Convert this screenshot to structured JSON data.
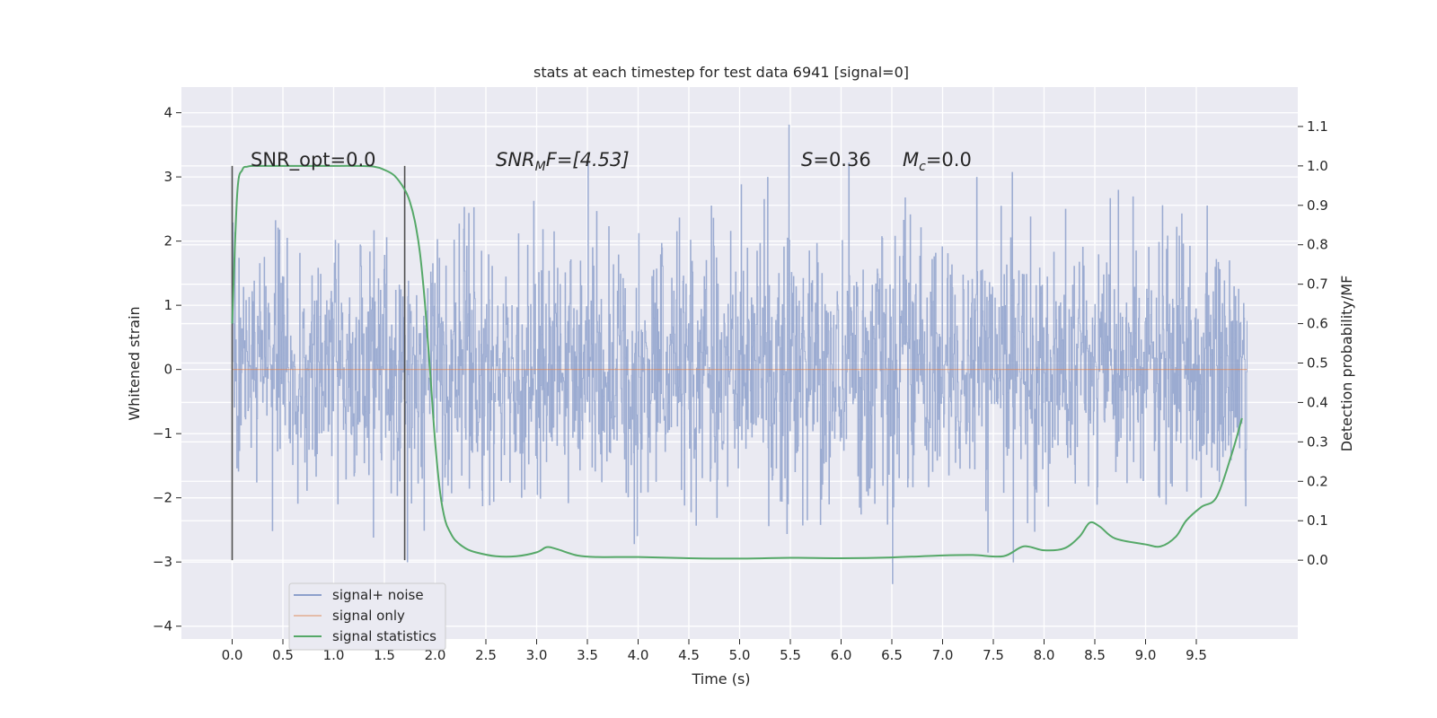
{
  "chart_data": {
    "type": "line",
    "title": "stats at each timestep for test data 6941 [signal=0]",
    "xlabel": "Time (s)",
    "ylabel": "Whitened strain",
    "ylabel_right": "Detection probability/MF",
    "xlim": [
      -0.5,
      10.5
    ],
    "ylim": [
      -4.2,
      4.4
    ],
    "ylim_right": [
      -0.2,
      1.2
    ],
    "x_ticks": [
      "0.0",
      "0.5",
      "1.0",
      "1.5",
      "2.0",
      "2.5",
      "3.0",
      "3.5",
      "4.0",
      "4.5",
      "5.0",
      "5.5",
      "6.0",
      "6.5",
      "7.0",
      "7.5",
      "8.0",
      "8.5",
      "9.0",
      "9.5"
    ],
    "y_ticks": [
      "−4",
      "−3",
      "−2",
      "−1",
      "0",
      "1",
      "2",
      "3",
      "4"
    ],
    "y_ticks_right": [
      "0.0",
      "0.1",
      "0.2",
      "0.3",
      "0.4",
      "0.5",
      "0.6",
      "0.7",
      "0.8",
      "0.9",
      "1.0",
      "1.1"
    ],
    "grid": true,
    "legend_position": "lower-left",
    "colors": {
      "background": "#eaeaf2",
      "noise": "#8da0cb",
      "signal_only": "#dd8452",
      "statistics": "#55a868",
      "vline": "#505050"
    },
    "annotations": {
      "snr_opt": "SNR_opt=0.0",
      "snr_mf_prefix": "SNR",
      "snr_mf_sub": "M",
      "snr_mf_suffix": "F=[4.53]",
      "s_label": "S",
      "s_value": "=0.36",
      "mc_label": "M",
      "mc_sub": "c",
      "mc_value": "=0.0"
    },
    "vertical_markers_x": [
      0.0,
      1.7
    ],
    "series": [
      {
        "name": "signal+ noise",
        "type": "noise",
        "envelope_typical": 1.4,
        "peak_max": 4.05,
        "peak_min": -3.75,
        "x_range": [
          0.0,
          10.0
        ]
      },
      {
        "name": "signal only",
        "type": "constant",
        "value": 0.0,
        "x_range": [
          0.0,
          10.0
        ]
      },
      {
        "name": "signal statistics",
        "axis": "right",
        "x": [
          0.0,
          0.05,
          0.1,
          0.15,
          0.2,
          0.3,
          0.5,
          0.8,
          1.0,
          1.2,
          1.4,
          1.5,
          1.6,
          1.7,
          1.75,
          1.8,
          1.85,
          1.9,
          1.95,
          2.0,
          2.05,
          2.1,
          2.15,
          2.2,
          2.3,
          2.4,
          2.6,
          2.8,
          3.0,
          3.1,
          3.2,
          3.4,
          3.6,
          4.0,
          4.5,
          5.0,
          5.5,
          6.0,
          6.5,
          7.0,
          7.3,
          7.6,
          7.8,
          8.0,
          8.2,
          8.35,
          8.45,
          8.55,
          8.7,
          9.0,
          9.15,
          9.3,
          9.4,
          9.55,
          9.7,
          9.85,
          9.95
        ],
        "y": [
          0.6,
          0.93,
          0.99,
          0.998,
          1.0,
          1.0,
          1.0,
          1.0,
          1.0,
          1.0,
          0.998,
          0.99,
          0.975,
          0.94,
          0.91,
          0.86,
          0.78,
          0.65,
          0.48,
          0.3,
          0.17,
          0.1,
          0.07,
          0.05,
          0.03,
          0.02,
          0.01,
          0.01,
          0.02,
          0.033,
          0.028,
          0.012,
          0.008,
          0.008,
          0.005,
          0.004,
          0.006,
          0.005,
          0.007,
          0.012,
          0.013,
          0.01,
          0.035,
          0.025,
          0.03,
          0.06,
          0.095,
          0.085,
          0.055,
          0.04,
          0.035,
          0.06,
          0.1,
          0.135,
          0.16,
          0.27,
          0.36
        ]
      }
    ]
  }
}
